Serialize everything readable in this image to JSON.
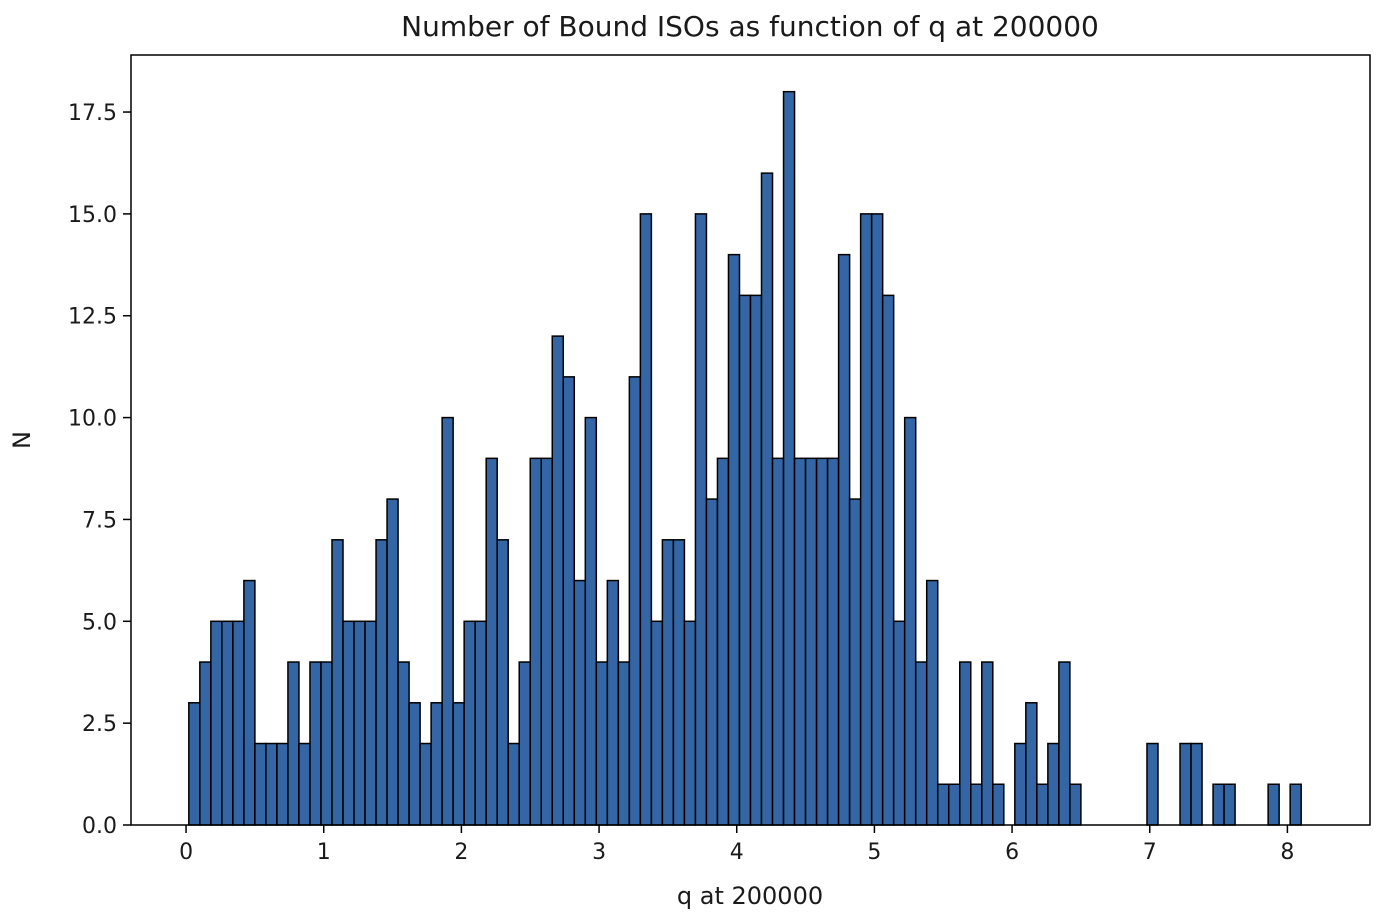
{
  "chart_data": {
    "type": "bar",
    "title": "Number of Bound ISOs as function of q at 200000",
    "xlabel": "q at 200000",
    "ylabel": "N",
    "xlim": [
      -0.4,
      8.6
    ],
    "ylim": [
      0,
      18.9
    ],
    "xticks": [
      0,
      1,
      2,
      3,
      4,
      5,
      6,
      7,
      8
    ],
    "xtick_labels": [
      "0",
      "1",
      "2",
      "3",
      "4",
      "5",
      "6",
      "7",
      "8"
    ],
    "yticks": [
      0,
      2.5,
      5,
      7.5,
      10,
      12.5,
      15,
      17.5
    ],
    "ytick_labels": [
      "0.0",
      "2.5",
      "5.0",
      "7.5",
      "10.0",
      "12.5",
      "15.0",
      "17.5"
    ],
    "bin_start": 0.02,
    "bin_width": 0.08,
    "values": [
      3,
      4,
      5,
      5,
      5,
      6,
      2,
      2,
      2,
      4,
      2,
      4,
      4,
      7,
      5,
      5,
      5,
      7,
      8,
      4,
      3,
      2,
      3,
      10,
      3,
      5,
      5,
      9,
      7,
      2,
      4,
      9,
      9,
      12,
      11,
      6,
      10,
      4,
      6,
      4,
      11,
      15,
      5,
      7,
      7,
      5,
      15,
      8,
      9,
      14,
      13,
      13,
      16,
      9,
      18,
      9,
      9,
      9,
      9,
      14,
      8,
      15,
      15,
      13,
      5,
      10,
      4,
      6,
      1,
      1,
      4,
      1,
      4,
      1,
      0,
      2,
      3,
      1,
      2,
      4,
      1,
      0,
      0,
      0,
      0,
      0,
      0,
      2,
      0,
      0,
      2,
      2,
      0,
      1,
      1,
      0,
      0,
      0,
      1,
      0,
      1
    ],
    "bar_color": "#3465a4",
    "edge_color": "#000000",
    "grid": false,
    "legend": "none"
  }
}
